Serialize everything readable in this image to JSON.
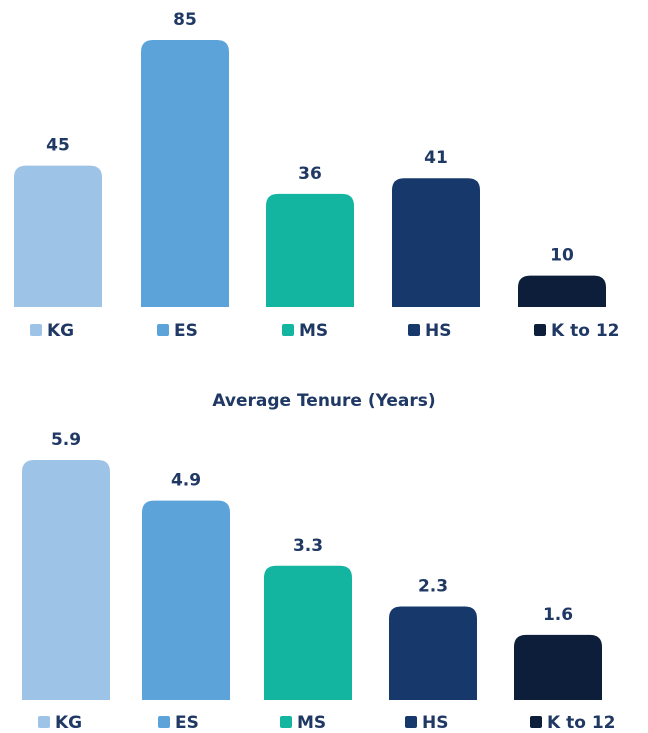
{
  "chart_data": [
    {
      "type": "bar",
      "categories": [
        "KG",
        "ES",
        "MS",
        "HS",
        "K to 12"
      ],
      "values": [
        45,
        85,
        36,
        41,
        10
      ],
      "colors": [
        "#9dc3e6",
        "#5ba3d9",
        "#13b5a0",
        "#16386b",
        "#0d1e3a"
      ]
    },
    {
      "type": "bar",
      "title": "Average Tenure (Years)",
      "categories": [
        "KG",
        "ES",
        "MS",
        "HS",
        "K to 12"
      ],
      "values": [
        5.9,
        4.9,
        3.3,
        2.3,
        1.6
      ],
      "colors": [
        "#9dc3e6",
        "#5ba3d9",
        "#13b5a0",
        "#16386b",
        "#0d1e3a"
      ]
    }
  ]
}
